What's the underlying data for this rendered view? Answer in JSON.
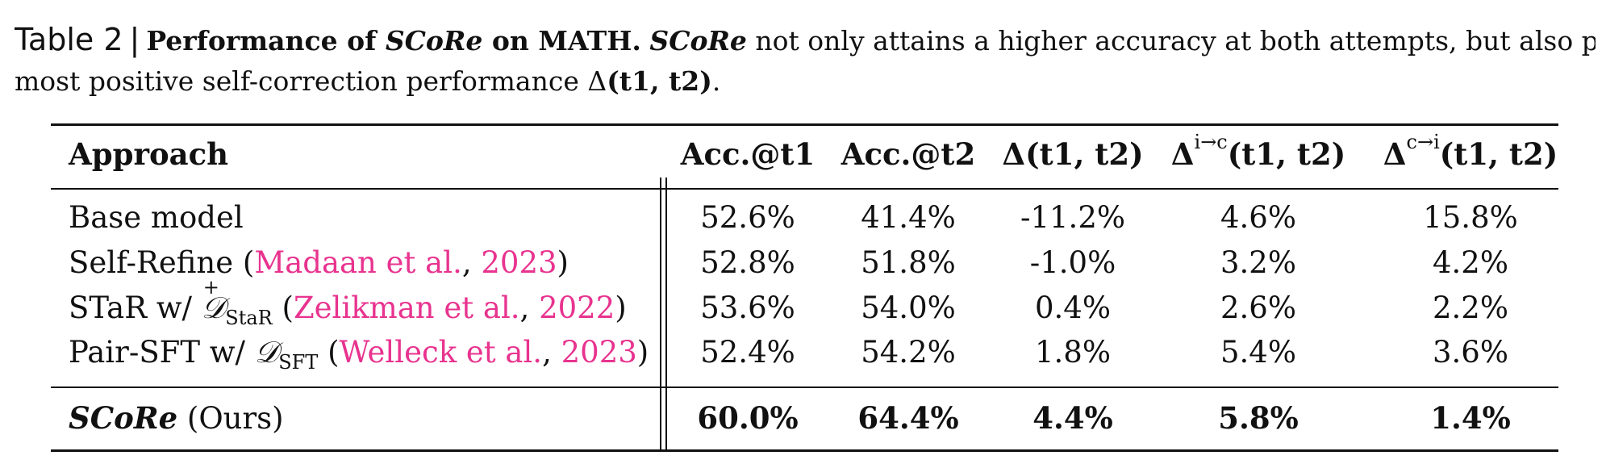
{
  "caption": {
    "label": "Table 2",
    "bar": "|",
    "bold_title_1": "Performance of ",
    "bold_title_italic": "SCoRe",
    "bold_title_2": " on MATH.",
    "text_1_italic": "SCoRe",
    "text_1": " not only attains a higher accuracy at both attempts, but also provides the",
    "line2_text": "most positive self-correction performance Δ",
    "line2_bold": "(t1, t2)",
    "line2_end": "."
  },
  "table": {
    "headers": {
      "approach": "Approach",
      "acc_t1": "Acc.@t1",
      "acc_t2": "Acc.@t2",
      "delta": "Δ(t1, t2)",
      "delta_ic_sym": "Δ",
      "delta_ic_sup": "i→c",
      "delta_ic_rest": "(t1, t2)",
      "delta_ci_sym": "Δ",
      "delta_ci_sup": "c→i",
      "delta_ci_rest": "(t1, t2)"
    },
    "rows": [
      {
        "name_prefix": "Base model",
        "name_ref": "",
        "values": [
          "52.6%",
          "41.4%",
          "-11.2%",
          "4.6%",
          "15.8%"
        ]
      },
      {
        "name_prefix": "Self-Refine (",
        "ref_author": "Madaan et al.",
        "ref_sep": ", ",
        "ref_year": "2023",
        "name_suffix": ")",
        "values": [
          "52.8%",
          "51.8%",
          "-1.0%",
          "3.2%",
          "4.2%"
        ]
      },
      {
        "name_prefix": "STaR w/ ",
        "math_symbol": "𝒟",
        "math_sup": "+",
        "math_sub": "StaR",
        "ref_open": " (",
        "ref_author": "Zelikman et al.",
        "ref_sep": ", ",
        "ref_year": "2022",
        "name_suffix": ")",
        "values": [
          "53.6%",
          "54.0%",
          "0.4%",
          "2.6%",
          "2.2%"
        ]
      },
      {
        "name_prefix": "Pair-SFT w/ ",
        "math_symbol": "𝒟",
        "math_sub": "SFT",
        "ref_open": " (",
        "ref_author": "Welleck et al.",
        "ref_sep": ", ",
        "ref_year": "2023",
        "name_suffix": ")",
        "values": [
          "52.4%",
          "54.2%",
          "1.8%",
          "5.4%",
          "3.6%"
        ]
      },
      {
        "name_italic": "SCoRe",
        "name_suffix": " (Ours)",
        "values": [
          "60.0%",
          "64.4%",
          "4.4%",
          "5.8%",
          "1.4%"
        ]
      }
    ]
  },
  "colors": {
    "link": "#e8338f",
    "text": "#111111"
  }
}
